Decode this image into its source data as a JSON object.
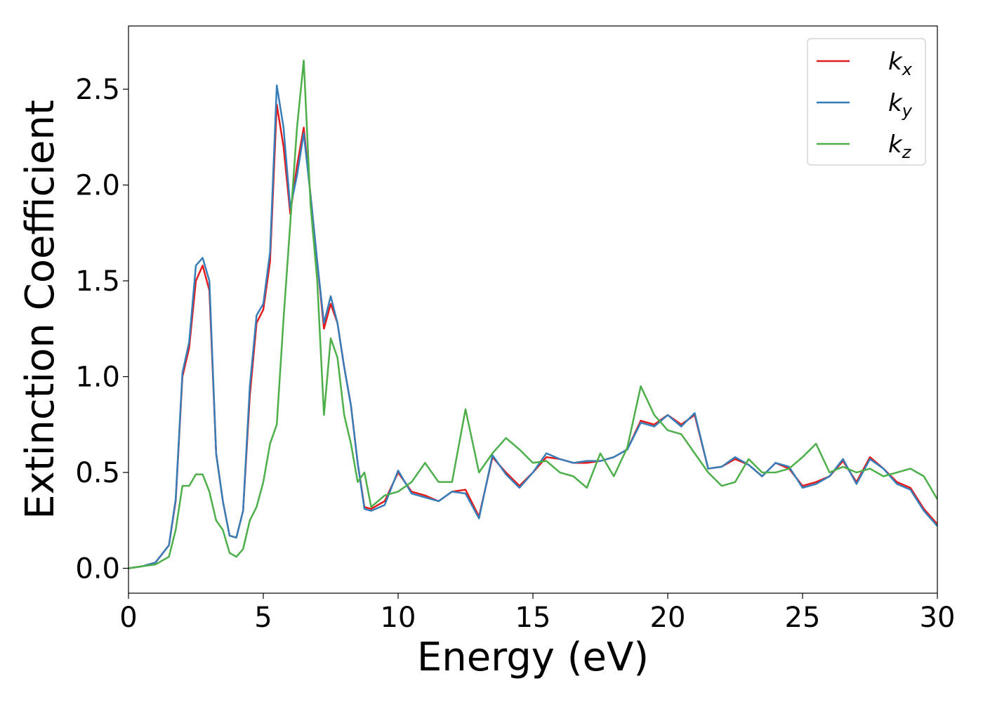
{
  "chart_data": {
    "type": "line",
    "xlabel": "Energy (eV)",
    "ylabel": "Extinction Coefficient",
    "x": [
      0,
      0.5,
      1,
      1.5,
      1.75,
      2,
      2.25,
      2.5,
      2.75,
      3,
      3.25,
      3.5,
      3.75,
      4,
      4.25,
      4.5,
      4.75,
      5,
      5.25,
      5.5,
      5.75,
      6,
      6.25,
      6.5,
      6.75,
      7,
      7.25,
      7.5,
      7.75,
      8,
      8.25,
      8.5,
      8.75,
      9,
      9.5,
      10,
      10.5,
      11,
      11.5,
      12,
      12.5,
      13,
      13.5,
      14,
      14.5,
      15,
      15.5,
      16,
      16.5,
      17,
      17.5,
      18,
      18.5,
      19,
      19.5,
      20,
      20.5,
      21,
      21.5,
      22,
      22.5,
      23,
      23.5,
      24,
      24.5,
      25,
      25.5,
      26,
      26.5,
      27,
      27.5,
      28,
      28.5,
      29,
      29.5,
      30
    ],
    "series": [
      {
        "name": "kx",
        "color": "#e41a1c",
        "values": [
          0,
          0.01,
          0.03,
          0.12,
          0.35,
          1.0,
          1.15,
          1.5,
          1.58,
          1.45,
          0.6,
          0.35,
          0.17,
          0.16,
          0.3,
          0.9,
          1.28,
          1.35,
          1.6,
          2.42,
          2.2,
          1.85,
          2.1,
          2.3,
          1.95,
          1.6,
          1.25,
          1.38,
          1.28,
          1.05,
          0.85,
          0.55,
          0.32,
          0.31,
          0.35,
          0.5,
          0.4,
          0.38,
          0.35,
          0.4,
          0.41,
          0.27,
          0.58,
          0.5,
          0.43,
          0.5,
          0.58,
          0.57,
          0.55,
          0.55,
          0.56,
          0.58,
          0.62,
          0.77,
          0.75,
          0.8,
          0.75,
          0.8,
          0.52,
          0.53,
          0.57,
          0.54,
          0.48,
          0.55,
          0.52,
          0.43,
          0.45,
          0.48,
          0.56,
          0.45,
          0.58,
          0.52,
          0.45,
          0.42,
          0.31,
          0.23
        ]
      },
      {
        "name": "ky",
        "color": "#377eb8",
        "values": [
          0,
          0.01,
          0.03,
          0.12,
          0.36,
          1.02,
          1.18,
          1.58,
          1.62,
          1.5,
          0.6,
          0.35,
          0.17,
          0.16,
          0.3,
          0.95,
          1.32,
          1.38,
          1.65,
          2.52,
          2.3,
          1.88,
          2.05,
          2.27,
          1.95,
          1.6,
          1.28,
          1.42,
          1.28,
          1.05,
          0.85,
          0.55,
          0.31,
          0.3,
          0.33,
          0.51,
          0.39,
          0.37,
          0.35,
          0.4,
          0.39,
          0.26,
          0.59,
          0.49,
          0.42,
          0.5,
          0.6,
          0.57,
          0.55,
          0.56,
          0.56,
          0.58,
          0.62,
          0.76,
          0.74,
          0.8,
          0.74,
          0.81,
          0.52,
          0.53,
          0.58,
          0.54,
          0.48,
          0.55,
          0.53,
          0.42,
          0.44,
          0.48,
          0.57,
          0.44,
          0.57,
          0.52,
          0.44,
          0.41,
          0.3,
          0.22
        ]
      },
      {
        "name": "kz",
        "color": "#4daf4a",
        "values": [
          0,
          0.01,
          0.02,
          0.06,
          0.2,
          0.43,
          0.43,
          0.49,
          0.49,
          0.4,
          0.25,
          0.2,
          0.08,
          0.06,
          0.1,
          0.25,
          0.32,
          0.45,
          0.65,
          0.75,
          1.3,
          1.8,
          2.3,
          2.65,
          1.9,
          1.5,
          0.8,
          1.2,
          1.1,
          0.8,
          0.65,
          0.45,
          0.5,
          0.32,
          0.38,
          0.4,
          0.45,
          0.55,
          0.45,
          0.45,
          0.83,
          0.5,
          0.6,
          0.68,
          0.62,
          0.55,
          0.56,
          0.5,
          0.48,
          0.42,
          0.6,
          0.48,
          0.63,
          0.95,
          0.8,
          0.72,
          0.7,
          0.6,
          0.5,
          0.43,
          0.45,
          0.57,
          0.5,
          0.5,
          0.52,
          0.58,
          0.65,
          0.5,
          0.53,
          0.5,
          0.52,
          0.48,
          0.5,
          0.52,
          0.48,
          0.36
        ]
      }
    ],
    "xlim": [
      0,
      30
    ],
    "xticks": [
      0,
      5,
      10,
      15,
      20,
      25,
      30
    ],
    "ylim": [
      -0.13,
      2.83
    ],
    "yticks": [
      {
        "value": 0,
        "label": "0.0"
      },
      {
        "value": 0.5,
        "label": "0.5"
      },
      {
        "value": 1,
        "label": "1.0"
      },
      {
        "value": 1.5,
        "label": "1.5"
      },
      {
        "value": 2,
        "label": "2.0"
      },
      {
        "value": 2.5,
        "label": "2.5"
      }
    ],
    "legend": "upper right",
    "grid": false
  }
}
